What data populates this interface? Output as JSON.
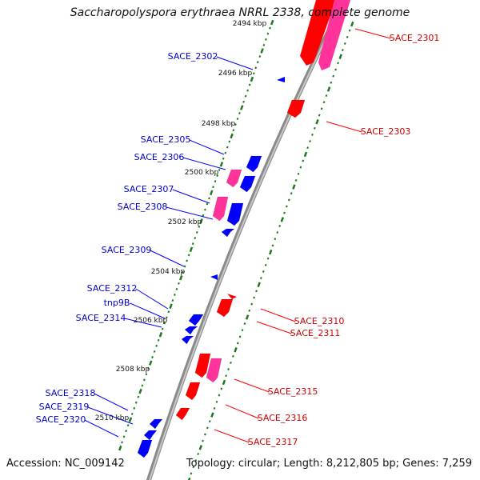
{
  "title": "Saccharopolyspora erythraea NRRL 2338, complete genome",
  "footer": {
    "accession": "Accession: NC_009142",
    "topology": "Topology: circular; Length: 8,212,805 bp; Genes: 7,259"
  },
  "colors": {
    "backbone": "#8a8a8a",
    "tick_green": "#1a7a1a",
    "gene_forward": "#ff0000",
    "gene_reverse": "#0000ff",
    "gene_rna": "#ff3399",
    "label_forward": "#cc0000",
    "label_reverse": "#0000cc"
  },
  "kbp_marks": [
    "2494 kbp",
    "2496 kbp",
    "2498 kbp",
    "2500 kbp",
    "2502 kbp",
    "2504 kbp",
    "2506 kbp",
    "2508 kbp",
    "2510 kbp"
  ],
  "reverse_labels": [
    "SACE_2302",
    "SACE_2305",
    "SACE_2306",
    "SACE_2307",
    "SACE_2308",
    "SACE_2309",
    "SACE_2312",
    "tnp9B",
    "SACE_2314",
    "SACE_2318",
    "SACE_2319",
    "SACE_2320"
  ],
  "forward_labels": [
    "SACE_2301",
    "SACE_2303",
    "SACE_2310",
    "SACE_2311",
    "SACE_2315",
    "SACE_2316",
    "SACE_2317"
  ]
}
